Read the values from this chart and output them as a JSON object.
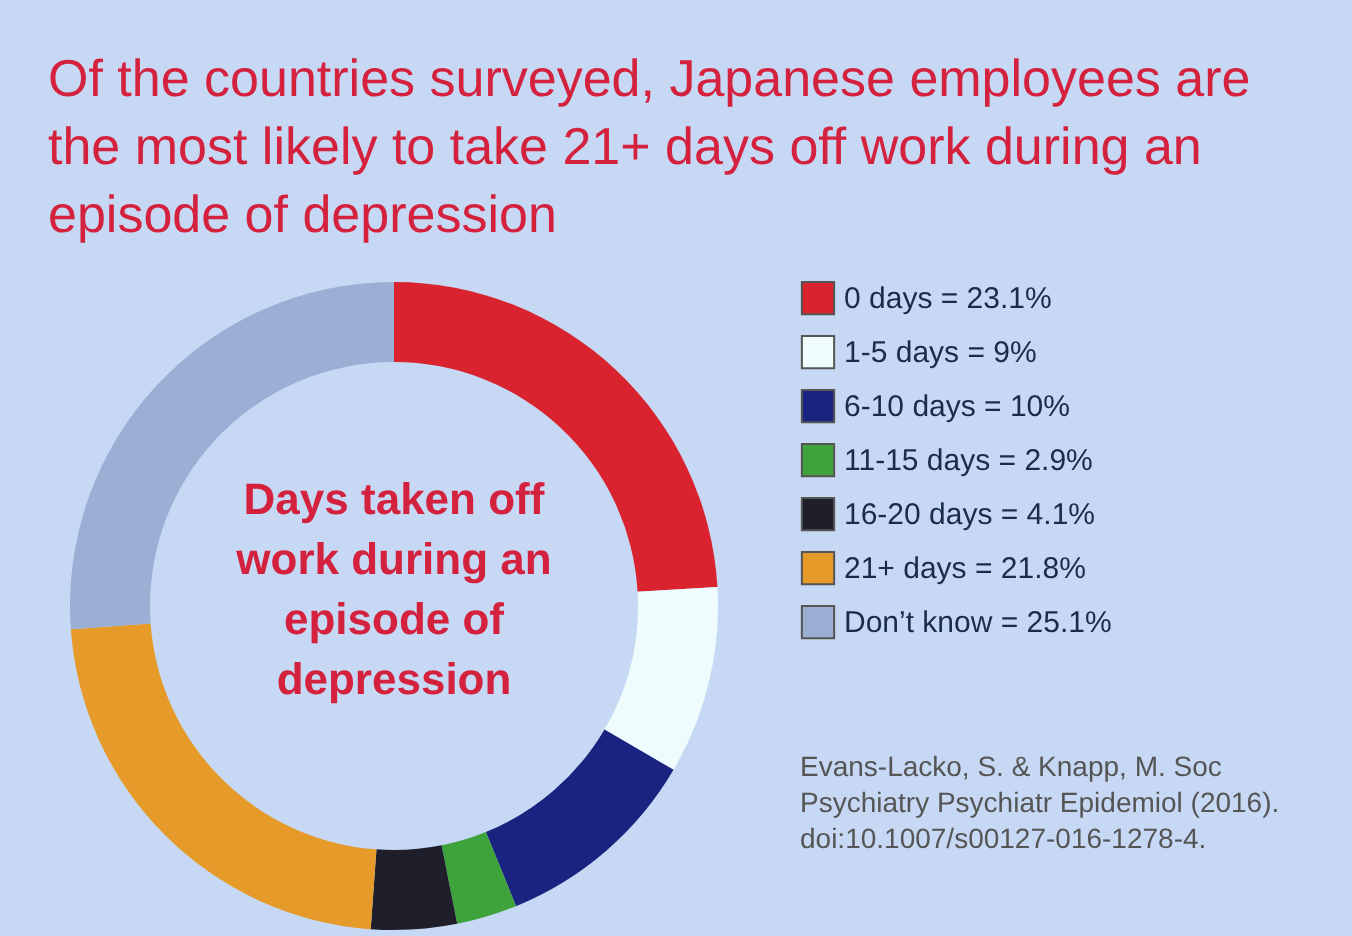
{
  "chart_data": {
    "type": "donut",
    "title": "Of the countries surveyed, Japanese employees are the most likely to take 21+ days off work during an episode of depression",
    "categories": [
      "0 days = 23.1%",
      "1-5 days =  9%",
      "6-10 days = 10%",
      "11-15 days = 2.9%",
      "16-20 days = 4.1%",
      "21+ days = 21.8%",
      "Don’t know = 25.1%"
    ],
    "values": [
      23.1,
      9,
      10,
      2.9,
      4.1,
      21.8,
      25.1
    ],
    "colors": [
      "#d9232e",
      "#eefcfd",
      "#1b2380",
      "#3ea33b",
      "#1e1f2b",
      "#e59a2a",
      "#9baed3"
    ],
    "legend": "right",
    "annotations": [
      "Days taken off work during an episode of depression",
      "Evans-Lacko, S. & Knapp, M. Soc Psychiatry Psychiatr Epidemiol (2016). doi:10.1007/s00127-016-1278-4."
    ]
  }
}
